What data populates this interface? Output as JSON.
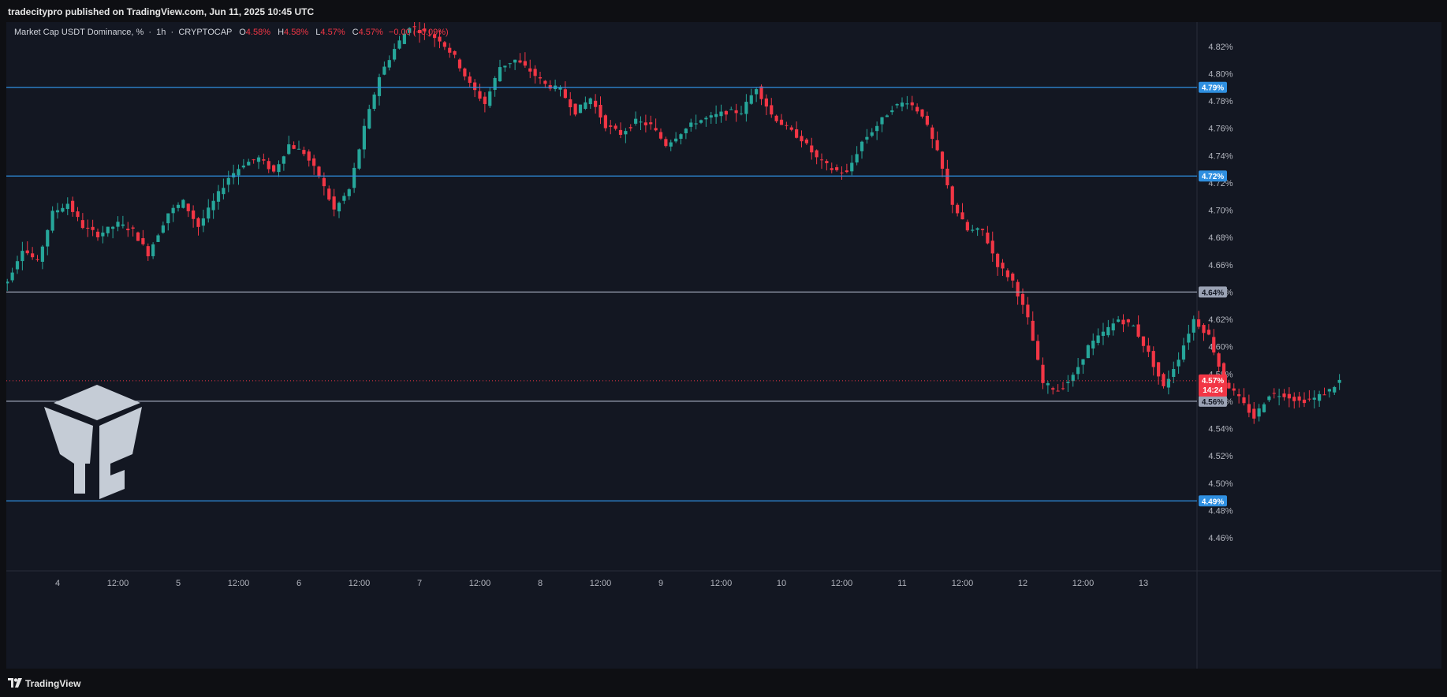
{
  "header": {
    "published_by": "tradecitypro published on TradingView.com, Jun 11, 2025 10:45 UTC"
  },
  "legend": {
    "symbol": "Market Cap USDT Dominance, %",
    "interval": "1h",
    "exchange": "CRYPTOCAP",
    "open_label": "O",
    "open": "4.58%",
    "high_label": "H",
    "high": "4.58%",
    "low_label": "L",
    "low": "4.57%",
    "close_label": "C",
    "close": "4.57%",
    "change": "−0.00 (−0.09%)"
  },
  "footer": {
    "brand": "TradingView"
  },
  "colors": {
    "up": "#26a69a",
    "down": "#f23645",
    "level_blue": "#2f8fe0",
    "level_gray": "#9ba3b5",
    "background": "#131722",
    "grid": "#1e222d"
  },
  "chart_data": {
    "type": "candlestick",
    "title": "",
    "symbol": "Market Cap USDT Dominance, %",
    "interval": "1h",
    "ylim": [
      4.445,
      4.832
    ],
    "y_ticks": [
      4.46,
      4.48,
      4.5,
      4.52,
      4.54,
      4.56,
      4.58,
      4.6,
      4.62,
      4.64,
      4.66,
      4.68,
      4.7,
      4.72,
      4.74,
      4.76,
      4.78,
      4.8,
      4.82
    ],
    "x_ticks": [
      "4",
      "12:00",
      "5",
      "12:00",
      "6",
      "12:00",
      "7",
      "12:00",
      "8",
      "12:00",
      "9",
      "12:00",
      "10",
      "12:00",
      "11",
      "12:00",
      "12",
      "12:00",
      "13"
    ],
    "grid": false,
    "horizontal_levels": [
      {
        "value": 4.79,
        "label": "4.79%",
        "style": "blue"
      },
      {
        "value": 4.725,
        "label": "4.72%",
        "style": "blue"
      },
      {
        "value": 4.64,
        "label": "4.64%",
        "style": "gray"
      },
      {
        "value": 4.56,
        "label": "4.56%",
        "style": "gray"
      },
      {
        "value": 4.487,
        "label": "4.49%",
        "style": "blue"
      }
    ],
    "last_price": {
      "value": 4.575,
      "label": "4.57%",
      "countdown": "14:24"
    },
    "knots": [
      [
        0,
        4.642
      ],
      [
        3,
        4.648
      ],
      [
        6,
        4.672
      ],
      [
        9,
        4.662
      ],
      [
        12,
        4.698
      ],
      [
        15,
        4.705
      ],
      [
        18,
        4.688
      ],
      [
        21,
        4.682
      ],
      [
        25,
        4.69
      ],
      [
        28,
        4.685
      ],
      [
        31,
        4.668
      ],
      [
        35,
        4.698
      ],
      [
        38,
        4.706
      ],
      [
        41,
        4.688
      ],
      [
        44,
        4.706
      ],
      [
        47,
        4.724
      ],
      [
        50,
        4.734
      ],
      [
        53,
        4.738
      ],
      [
        56,
        4.728
      ],
      [
        59,
        4.748
      ],
      [
        62,
        4.742
      ],
      [
        65,
        4.725
      ],
      [
        68,
        4.7
      ],
      [
        71,
        4.715
      ],
      [
        74,
        4.76
      ],
      [
        77,
        4.798
      ],
      [
        80,
        4.818
      ],
      [
        83,
        4.835
      ],
      [
        86,
        4.83
      ],
      [
        89,
        4.825
      ],
      [
        92,
        4.812
      ],
      [
        95,
        4.792
      ],
      [
        98,
        4.778
      ],
      [
        101,
        4.805
      ],
      [
        104,
        4.81
      ],
      [
        107,
        4.802
      ],
      [
        110,
        4.792
      ],
      [
        113,
        4.788
      ],
      [
        116,
        4.772
      ],
      [
        119,
        4.782
      ],
      [
        122,
        4.762
      ],
      [
        125,
        4.756
      ],
      [
        128,
        4.765
      ],
      [
        131,
        4.762
      ],
      [
        134,
        4.748
      ],
      [
        137,
        4.757
      ],
      [
        140,
        4.765
      ],
      [
        143,
        4.768
      ],
      [
        146,
        4.772
      ],
      [
        149,
        4.772
      ],
      [
        152,
        4.79
      ],
      [
        155,
        4.77
      ],
      [
        158,
        4.76
      ],
      [
        161,
        4.752
      ],
      [
        164,
        4.738
      ],
      [
        167,
        4.73
      ],
      [
        170,
        4.727
      ],
      [
        173,
        4.75
      ],
      [
        176,
        4.762
      ],
      [
        179,
        4.775
      ],
      [
        182,
        4.78
      ],
      [
        185,
        4.77
      ],
      [
        188,
        4.742
      ],
      [
        191,
        4.705
      ],
      [
        194,
        4.685
      ],
      [
        197,
        4.685
      ],
      [
        200,
        4.66
      ],
      [
        203,
        4.648
      ],
      [
        206,
        4.62
      ],
      [
        209,
        4.573
      ],
      [
        212,
        4.568
      ],
      [
        215,
        4.578
      ],
      [
        218,
        4.6
      ],
      [
        221,
        4.61
      ],
      [
        224,
        4.62
      ],
      [
        227,
        4.615
      ],
      [
        230,
        4.595
      ],
      [
        233,
        4.57
      ],
      [
        236,
        4.592
      ],
      [
        239,
        4.62
      ],
      [
        242,
        4.608
      ],
      [
        245,
        4.575
      ],
      [
        248,
        4.562
      ],
      [
        251,
        4.548
      ],
      [
        254,
        4.565
      ],
      [
        257,
        4.565
      ],
      [
        260,
        4.56
      ],
      [
        263,
        4.562
      ],
      [
        266,
        4.568
      ],
      [
        268,
        4.575
      ]
    ]
  }
}
